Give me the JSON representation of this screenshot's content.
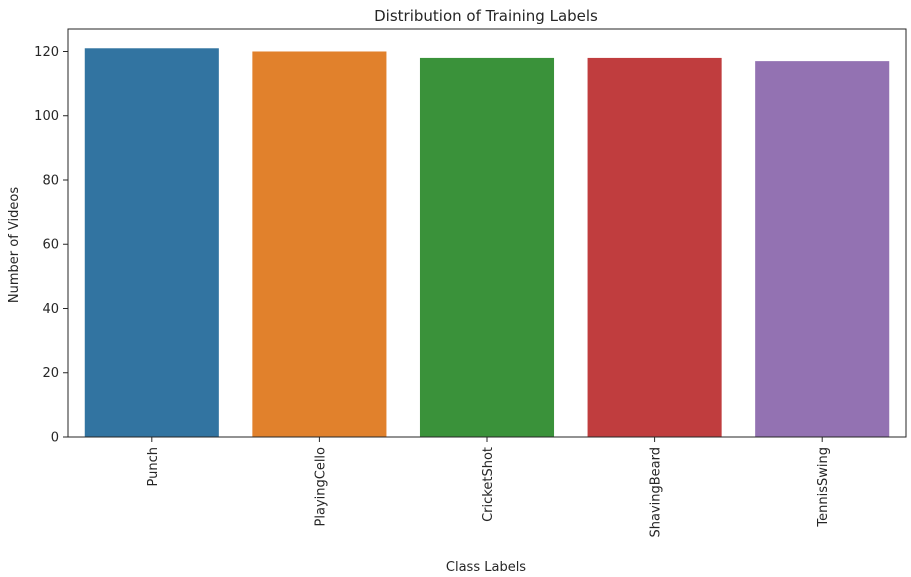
{
  "chart_data": {
    "type": "bar",
    "title": "Distribution of Training Labels",
    "xlabel": "Class Labels",
    "ylabel": "Number of Videos",
    "categories": [
      "Punch",
      "PlayingCello",
      "CricketShot",
      "ShavingBeard",
      "TennisSwing"
    ],
    "values": [
      121,
      120,
      118,
      118,
      117
    ],
    "colors": [
      "#3274a1",
      "#e1812c",
      "#3a923a",
      "#c03d3e",
      "#9372b2"
    ],
    "ylim": [
      0,
      127
    ],
    "yticks": [
      0,
      20,
      40,
      60,
      80,
      100,
      120
    ],
    "grid": false,
    "legend": "none"
  }
}
